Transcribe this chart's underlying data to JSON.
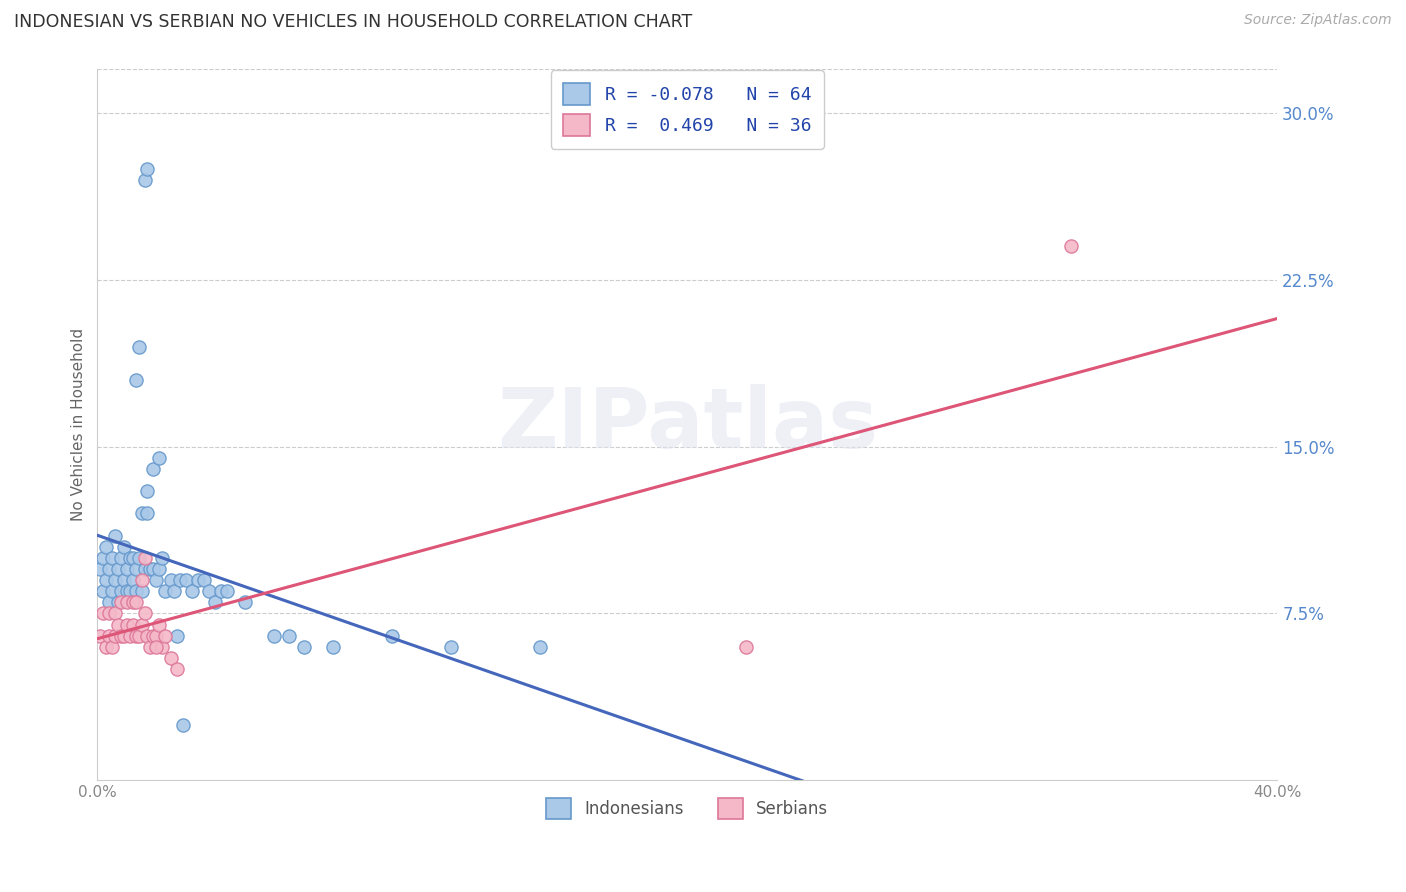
{
  "title": "INDONESIAN VS SERBIAN NO VEHICLES IN HOUSEHOLD CORRELATION CHART",
  "source": "Source: ZipAtlas.com",
  "ylabel": "No Vehicles in Household",
  "yticks_pct": [
    7.5,
    15.0,
    22.5,
    30.0
  ],
  "xlim": [
    0.0,
    0.4
  ],
  "ylim": [
    0.0,
    0.32
  ],
  "indonesian_color": "#aac8e8",
  "indonesian_edge": "#6699cc",
  "serbian_color": "#f4b8c8",
  "serbian_edge": "#dd7799",
  "indonesian_line_color": "#4466bb",
  "serbian_line_color": "#dd5577",
  "background_color": "#ffffff",
  "grid_color": "#cccccc",
  "legend_text_color": "#2244aa",
  "indonesian_R": -0.078,
  "indonesian_N": 64,
  "serbian_R": 0.469,
  "serbian_N": 36,
  "watermark": "ZIPatlas",
  "legend_labels": [
    "Indonesians",
    "Serbians"
  ],
  "ind_x": [
    0.001,
    0.002,
    0.002,
    0.003,
    0.003,
    0.004,
    0.004,
    0.005,
    0.005,
    0.006,
    0.006,
    0.007,
    0.007,
    0.008,
    0.008,
    0.009,
    0.009,
    0.01,
    0.01,
    0.011,
    0.011,
    0.012,
    0.012,
    0.013,
    0.013,
    0.014,
    0.015,
    0.015,
    0.016,
    0.017,
    0.017,
    0.018,
    0.019,
    0.02,
    0.021,
    0.022,
    0.023,
    0.025,
    0.026,
    0.028,
    0.03,
    0.032,
    0.034,
    0.036,
    0.038,
    0.04,
    0.042,
    0.044,
    0.05,
    0.06,
    0.065,
    0.07,
    0.08,
    0.1,
    0.12,
    0.15,
    0.016,
    0.017,
    0.013,
    0.014,
    0.019,
    0.021,
    0.027,
    0.029
  ],
  "ind_y": [
    0.095,
    0.085,
    0.1,
    0.09,
    0.105,
    0.08,
    0.095,
    0.085,
    0.1,
    0.09,
    0.11,
    0.08,
    0.095,
    0.085,
    0.1,
    0.09,
    0.105,
    0.085,
    0.095,
    0.085,
    0.1,
    0.09,
    0.1,
    0.085,
    0.095,
    0.1,
    0.085,
    0.12,
    0.095,
    0.12,
    0.13,
    0.095,
    0.095,
    0.09,
    0.095,
    0.1,
    0.085,
    0.09,
    0.085,
    0.09,
    0.09,
    0.085,
    0.09,
    0.09,
    0.085,
    0.08,
    0.085,
    0.085,
    0.08,
    0.065,
    0.065,
    0.06,
    0.06,
    0.065,
    0.06,
    0.06,
    0.27,
    0.275,
    0.18,
    0.195,
    0.14,
    0.145,
    0.065,
    0.025
  ],
  "ser_x": [
    0.001,
    0.002,
    0.003,
    0.004,
    0.004,
    0.005,
    0.006,
    0.006,
    0.007,
    0.008,
    0.008,
    0.009,
    0.01,
    0.01,
    0.011,
    0.012,
    0.012,
    0.013,
    0.014,
    0.015,
    0.016,
    0.017,
    0.018,
    0.019,
    0.02,
    0.021,
    0.022,
    0.023,
    0.025,
    0.027,
    0.013,
    0.015,
    0.016,
    0.02,
    0.33,
    0.22
  ],
  "ser_y": [
    0.065,
    0.075,
    0.06,
    0.065,
    0.075,
    0.06,
    0.065,
    0.075,
    0.07,
    0.065,
    0.08,
    0.065,
    0.07,
    0.08,
    0.065,
    0.07,
    0.08,
    0.065,
    0.065,
    0.07,
    0.075,
    0.065,
    0.06,
    0.065,
    0.065,
    0.07,
    0.06,
    0.065,
    0.055,
    0.05,
    0.08,
    0.09,
    0.1,
    0.06,
    0.24,
    0.06
  ]
}
